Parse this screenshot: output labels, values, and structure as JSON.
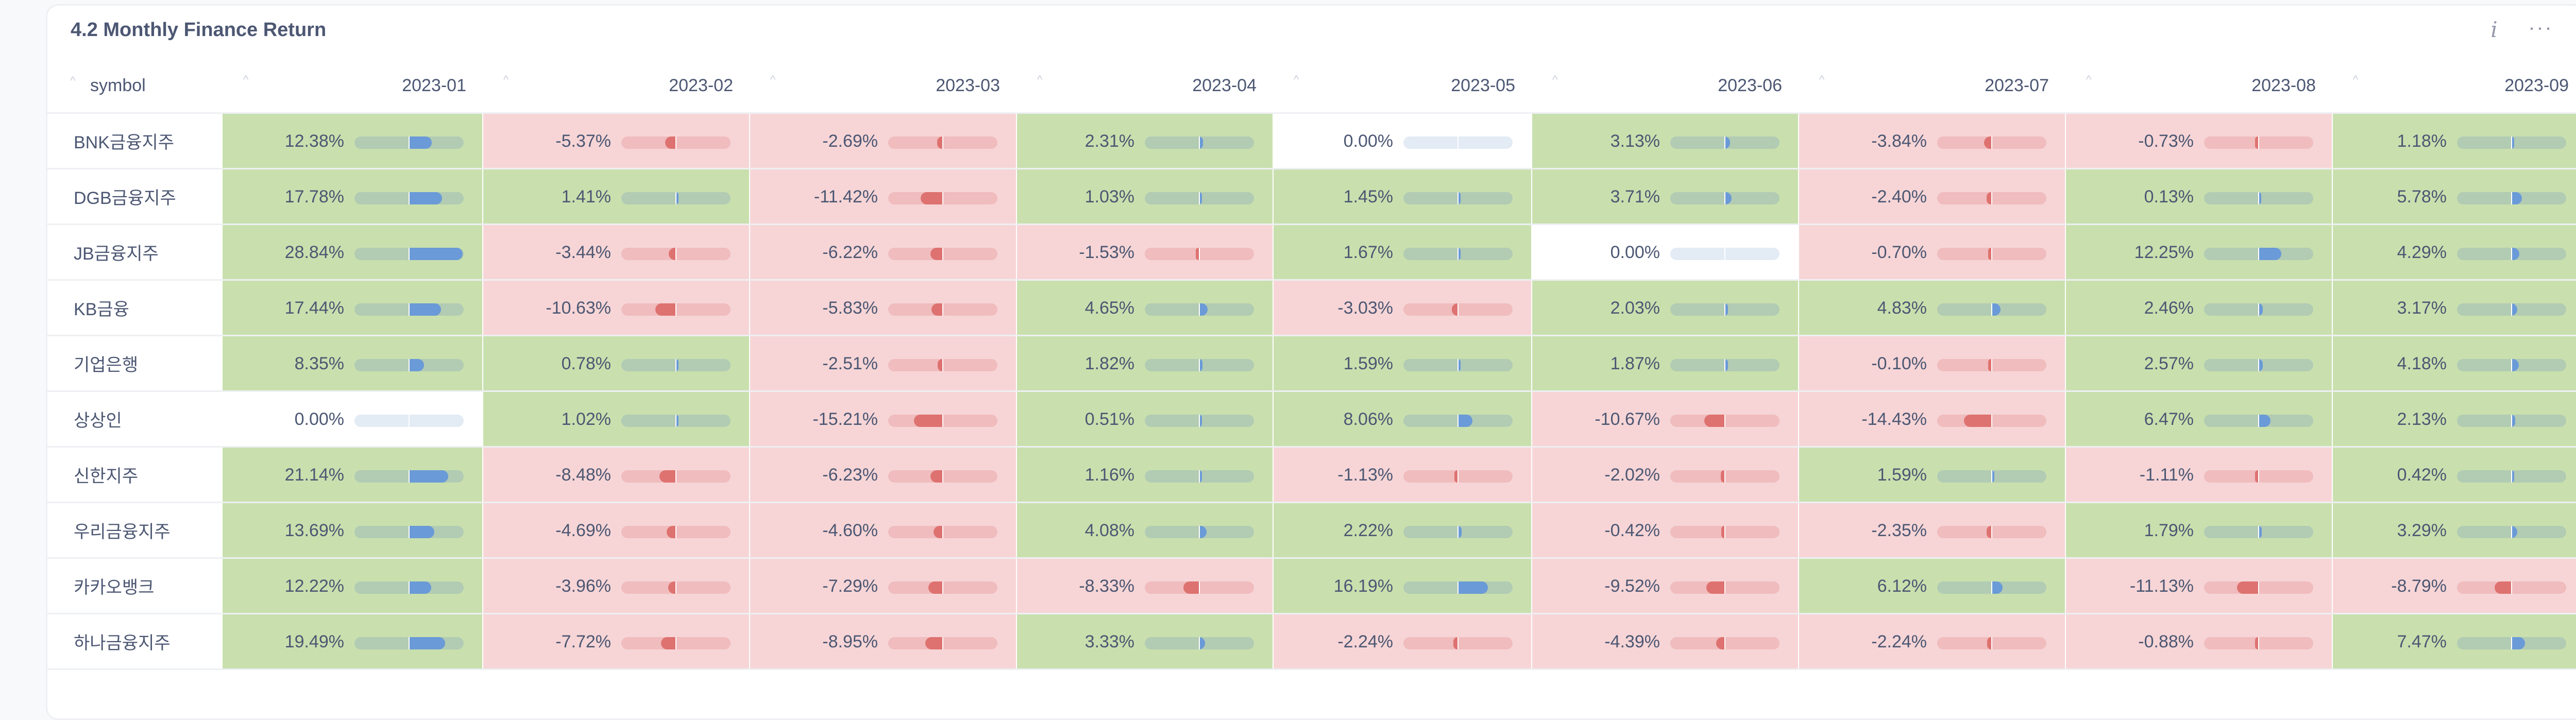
{
  "card": {
    "title": "4.2 Monthly Finance Return",
    "info_icon": "info-icon",
    "more_icon": "more-icon"
  },
  "colors": {
    "positive_bg": "#c9e0ae",
    "negative_bg": "#f7d5d6",
    "zero_bg": "#ffffff",
    "positive_bar": "#6a9ad7",
    "negative_bar": "#de7270",
    "positive_track": "#b2cbb3",
    "negative_track": "#f0bcbe",
    "zero_track": "#e3ebf5"
  },
  "table": {
    "symbol_header": "symbol",
    "columns": [
      "2023-01",
      "2023-02",
      "2023-03",
      "2023-04",
      "2023-05",
      "2023-06",
      "2023-07",
      "2023-08",
      "2023-09"
    ],
    "bar_scale_max": 28.84,
    "rows": [
      {
        "symbol": "BNK금융지주",
        "values": [
          12.38,
          -5.37,
          -2.69,
          2.31,
          0.0,
          3.13,
          -3.84,
          -0.73,
          1.18
        ]
      },
      {
        "symbol": "DGB금융지주",
        "values": [
          17.78,
          1.41,
          -11.42,
          1.03,
          1.45,
          3.71,
          -2.4,
          0.13,
          5.78
        ]
      },
      {
        "symbol": "JB금융지주",
        "values": [
          28.84,
          -3.44,
          -6.22,
          -1.53,
          1.67,
          0.0,
          -0.7,
          12.25,
          4.29
        ]
      },
      {
        "symbol": "KB금융",
        "values": [
          17.44,
          -10.63,
          -5.83,
          4.65,
          -3.03,
          2.03,
          4.83,
          2.46,
          3.17
        ]
      },
      {
        "symbol": "기업은행",
        "values": [
          8.35,
          0.78,
          -2.51,
          1.82,
          1.59,
          1.87,
          -0.1,
          2.57,
          4.18
        ]
      },
      {
        "symbol": "상상인",
        "values": [
          0.0,
          1.02,
          -15.21,
          0.51,
          8.06,
          -10.67,
          -14.43,
          6.47,
          2.13
        ]
      },
      {
        "symbol": "신한지주",
        "values": [
          21.14,
          -8.48,
          -6.23,
          1.16,
          -1.13,
          -2.02,
          1.59,
          -1.11,
          0.42
        ]
      },
      {
        "symbol": "우리금융지주",
        "values": [
          13.69,
          -4.69,
          -4.6,
          4.08,
          2.22,
          -0.42,
          -2.35,
          1.79,
          3.29
        ]
      },
      {
        "symbol": "카카오뱅크",
        "values": [
          12.22,
          -3.96,
          -7.29,
          -8.33,
          16.19,
          -9.52,
          6.12,
          -11.13,
          -8.79
        ]
      },
      {
        "symbol": "하나금융지주",
        "values": [
          19.49,
          -7.72,
          -8.95,
          3.33,
          -2.24,
          -4.39,
          -2.24,
          -0.88,
          7.47
        ]
      }
    ]
  }
}
